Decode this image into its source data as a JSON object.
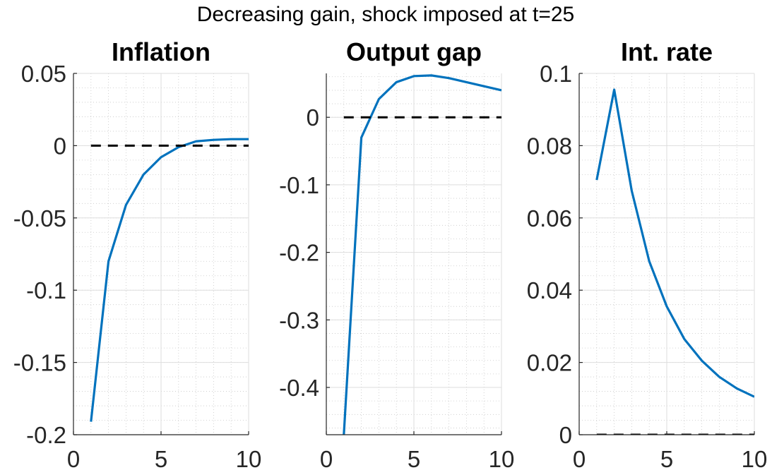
{
  "figure": {
    "suptitle": "Decreasing gain, shock imposed at t=25"
  },
  "chart_data": [
    {
      "type": "line",
      "title": "Inflation",
      "xlabel": "",
      "ylabel": "",
      "xlim": [
        0,
        10
      ],
      "ylim": [
        -0.2,
        0.05
      ],
      "xticks": [
        0,
        5,
        10
      ],
      "xtick_labels": [
        "0",
        "5",
        "10"
      ],
      "yticks": [
        -0.2,
        -0.15,
        -0.1,
        -0.05,
        0,
        0.05
      ],
      "ytick_labels": [
        "-0.2",
        "-0.15",
        "-0.1",
        "-0.05",
        "0",
        "0.05"
      ],
      "grid": true,
      "minor_grid": true,
      "series": [
        {
          "style": "solid",
          "color": "#0072BD",
          "x": [
            1,
            2,
            3,
            4,
            5,
            6,
            7,
            8,
            9,
            10
          ],
          "y": [
            -0.191,
            -0.08,
            -0.041,
            -0.02,
            -0.008,
            -0.001,
            0.003,
            0.004,
            0.0045,
            0.0045
          ]
        },
        {
          "style": "dashed",
          "color": "#000000",
          "x": [
            1,
            10
          ],
          "y": [
            0,
            0
          ]
        }
      ]
    },
    {
      "type": "line",
      "title": "Output gap",
      "xlabel": "",
      "ylabel": "",
      "xlim": [
        0,
        10
      ],
      "ylim": [
        -0.47,
        0.065
      ],
      "xticks": [
        0,
        5,
        10
      ],
      "xtick_labels": [
        "0",
        "5",
        "10"
      ],
      "yticks": [
        -0.4,
        -0.3,
        -0.2,
        -0.1,
        0
      ],
      "ytick_labels": [
        "-0.4",
        "-0.3",
        "-0.2",
        "-0.1",
        "0"
      ],
      "grid": true,
      "minor_grid": true,
      "series": [
        {
          "style": "solid",
          "color": "#0072BD",
          "x": [
            1,
            2,
            3,
            4,
            5,
            6,
            7,
            8,
            9,
            10
          ],
          "y": [
            -0.47,
            -0.03,
            0.027,
            0.052,
            0.061,
            0.062,
            0.058,
            0.052,
            0.046,
            0.04
          ]
        },
        {
          "style": "dashed",
          "color": "#000000",
          "x": [
            1,
            10
          ],
          "y": [
            0,
            0
          ]
        }
      ]
    },
    {
      "type": "line",
      "title": "Int. rate",
      "xlabel": "",
      "ylabel": "",
      "xlim": [
        0,
        10
      ],
      "ylim": [
        0,
        0.1
      ],
      "xticks": [
        0,
        5,
        10
      ],
      "xtick_labels": [
        "0",
        "5",
        "10"
      ],
      "yticks": [
        0,
        0.02,
        0.04,
        0.06,
        0.08,
        0.1
      ],
      "ytick_labels": [
        "0",
        "0.02",
        "0.04",
        "0.06",
        "0.08",
        "0.1"
      ],
      "grid": true,
      "minor_grid": true,
      "series": [
        {
          "style": "solid",
          "color": "#0072BD",
          "x": [
            1,
            2,
            3,
            4,
            5,
            6,
            7,
            8,
            9,
            10
          ],
          "y": [
            0.0705,
            0.0955,
            0.0675,
            0.048,
            0.0355,
            0.0265,
            0.0205,
            0.016,
            0.0128,
            0.0105
          ]
        },
        {
          "style": "dashed",
          "color": "#000000",
          "x": [
            1,
            10
          ],
          "y": [
            0,
            0
          ]
        }
      ]
    }
  ]
}
